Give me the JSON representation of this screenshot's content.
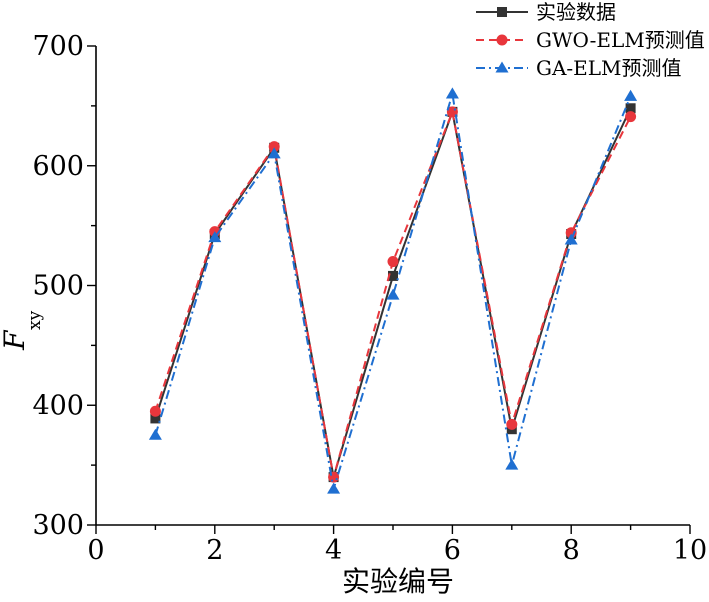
{
  "chart_data": {
    "type": "line",
    "title": "",
    "xlabel": "实验编号",
    "ylabel": "F",
    "ylabel_sub": "xy",
    "xlim": [
      0,
      10
    ],
    "ylim": [
      300,
      700
    ],
    "xticks": [
      0,
      2,
      4,
      6,
      8,
      10
    ],
    "yticks": [
      300,
      400,
      500,
      600,
      700
    ],
    "x_minor_step": 1,
    "y_minor_step": 50,
    "grid": false,
    "legend_position": "top-right",
    "x": [
      1,
      2,
      3,
      4,
      5,
      6,
      7,
      8,
      9
    ],
    "series": [
      {
        "name": "实验数据",
        "color": "#333333",
        "marker": "square",
        "line_style": "solid",
        "values": [
          389,
          543,
          615,
          340,
          508,
          645,
          380,
          543,
          648
        ]
      },
      {
        "name": "GWO-ELM预测值",
        "color": "#e8363c",
        "marker": "circle",
        "line_style": "dashed",
        "values": [
          395,
          545,
          616,
          340,
          520,
          645,
          384,
          544,
          641
        ]
      },
      {
        "name": "GA-ELM预测值",
        "color": "#1f6fd1",
        "marker": "triangle",
        "line_style": "dash-dot",
        "values": [
          375,
          540,
          610,
          330,
          492,
          660,
          350,
          538,
          658
        ]
      }
    ]
  }
}
